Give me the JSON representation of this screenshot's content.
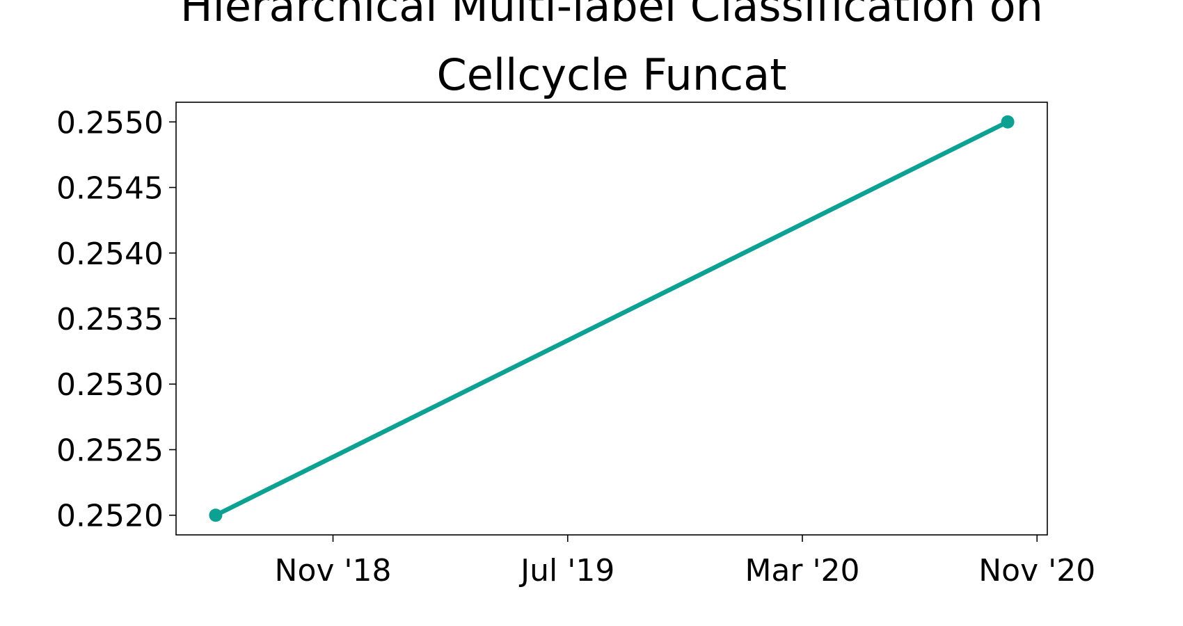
{
  "chart_data": {
    "type": "line",
    "title": [
      "Hierarchical Multi-label Classification on",
      "Cellcycle Funcat"
    ],
    "x": [
      "2018-07",
      "2020-10"
    ],
    "series": [
      {
        "color": "#0ca193",
        "values": [
          0.252,
          0.255
        ]
      }
    ],
    "xticks": [
      {
        "value": "2018-11",
        "label": "Nov '18"
      },
      {
        "value": "2019-07",
        "label": "Jul '19"
      },
      {
        "value": "2020-03",
        "label": "Mar '20"
      },
      {
        "value": "2020-11",
        "label": "Nov '20"
      }
    ],
    "ylim": [
      0.25185,
      0.25515
    ],
    "yticks": [
      {
        "value": 0.252,
        "label": "0.2520"
      },
      0.2525,
      {
        "value": 0.253,
        "label": "0.2530"
      },
      0.2535,
      {
        "value": 0.254,
        "label": "0.2540"
      },
      0.2545,
      {
        "value": 0.255,
        "label": "0.2550"
      }
    ],
    "grid": false
  }
}
